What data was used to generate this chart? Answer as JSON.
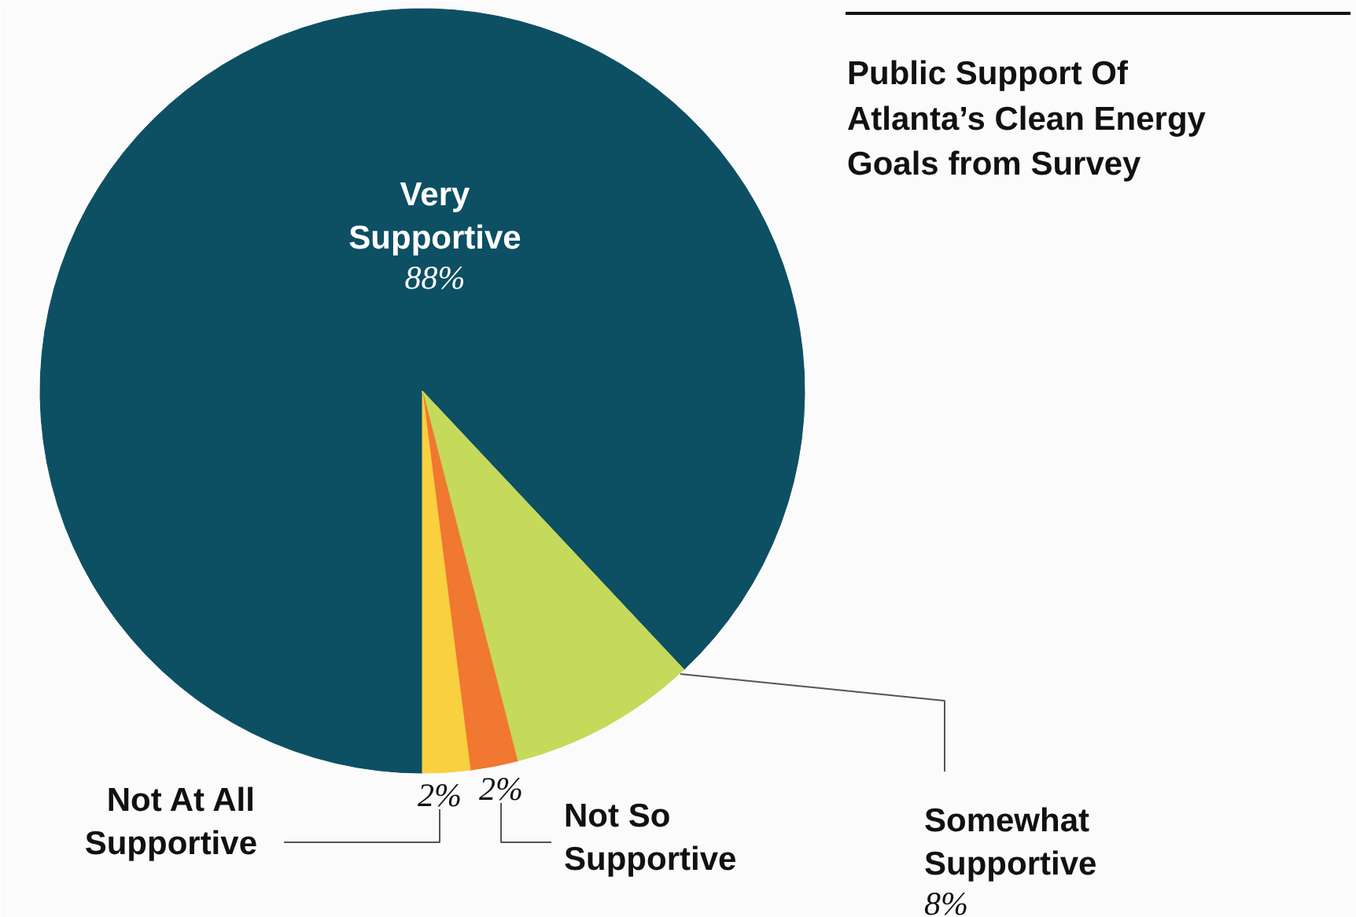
{
  "chart_data": {
    "type": "pie",
    "title": "Public Support Of Atlanta’s Clean Energy Goals from Survey",
    "categories": [
      "Very Supportive",
      "Somewhat Supportive",
      "Not So Supportive",
      "Not At All Supportive"
    ],
    "values": [
      88,
      8,
      2,
      2
    ],
    "value_labels": [
      "88%",
      "8%",
      "2%",
      "2%"
    ],
    "colors": [
      "#0d4f63",
      "#c5d95a",
      "#f07830",
      "#f9d03f"
    ]
  }
}
